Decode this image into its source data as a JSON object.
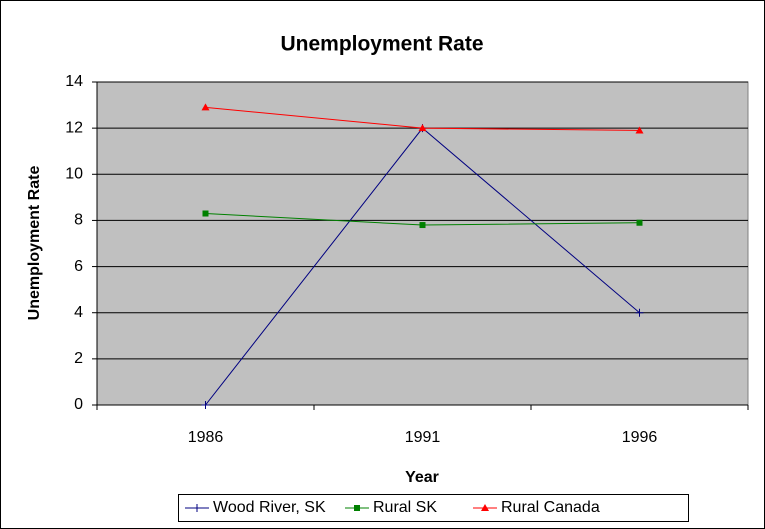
{
  "chart_data": {
    "type": "line",
    "title": "Unemployment Rate",
    "x_label": "Year",
    "y_label": "Unemployment Rate",
    "categories": [
      "1986",
      "1991",
      "1996"
    ],
    "series": [
      {
        "name": "Wood River, SK",
        "color": "#000080",
        "marker": "plus",
        "values": [
          0,
          12,
          4
        ]
      },
      {
        "name": "Rural SK",
        "color": "#008000",
        "marker": "square",
        "values": [
          8.3,
          7.8,
          7.9
        ]
      },
      {
        "name": "Rural Canada",
        "color": "#ff0000",
        "marker": "triangle",
        "values": [
          12.9,
          12.0,
          11.9
        ]
      }
    ],
    "ylim": [
      0,
      14
    ],
    "yticks": [
      0,
      2,
      4,
      6,
      8,
      10,
      12,
      14
    ],
    "grid": true,
    "legend": "bottom"
  }
}
